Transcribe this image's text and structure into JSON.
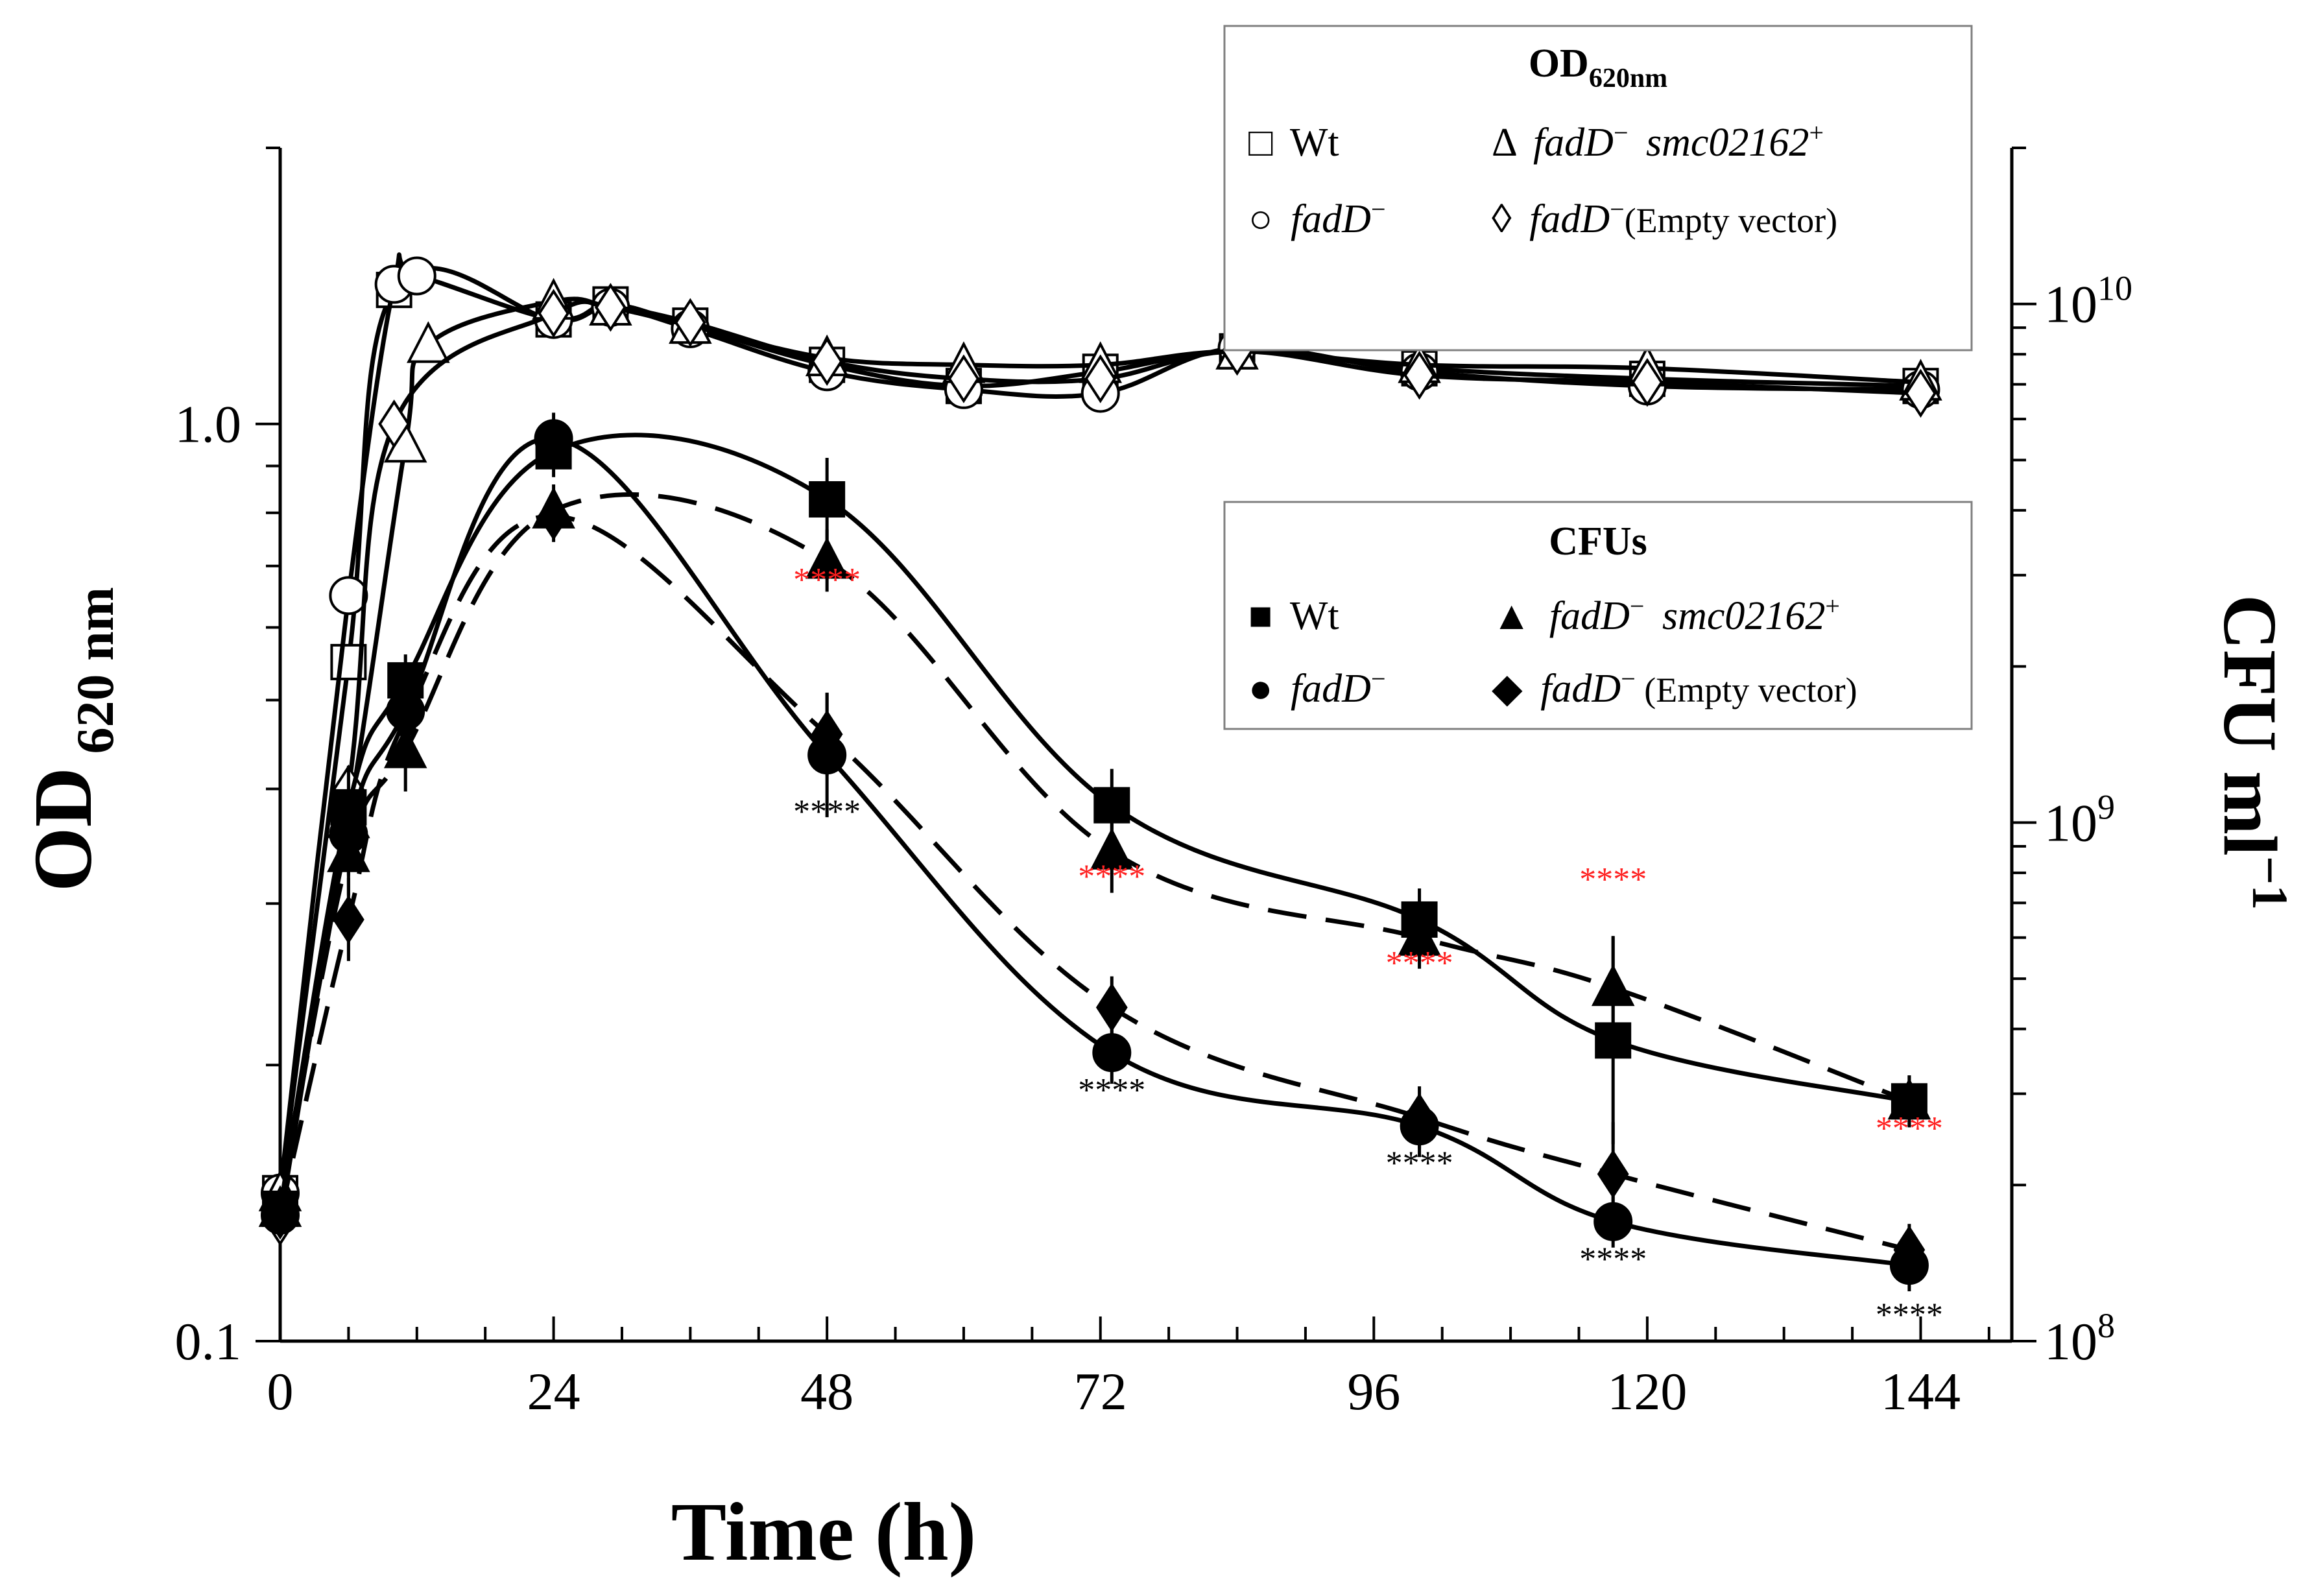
{
  "chart_data": {
    "type": "line",
    "xlabel": "Time (h)",
    "ylabel_left": {
      "main": "OD",
      "sub": " 620 nm"
    },
    "ylabel_right": {
      "main": "CFU ml",
      "sup": "−1"
    },
    "x_ticks": [
      "0",
      "24",
      "48",
      "72",
      "96",
      "120",
      "144"
    ],
    "x_tick_values": [
      0,
      24,
      48,
      72,
      96,
      120,
      144
    ],
    "x_range": [
      0,
      152
    ],
    "y_left": {
      "scale": "log",
      "range": [
        0.1,
        2.0
      ],
      "tick_labels": [
        "0.1",
        "1.0"
      ],
      "tick_values": [
        0.1,
        1.0
      ]
    },
    "y_right": {
      "scale": "log",
      "range": [
        100000000,
        20000000000
      ],
      "tick_labels": [
        {
          "base": "10",
          "exp": "8"
        },
        {
          "base": "10",
          "exp": "9"
        },
        {
          "base": "10",
          "exp": "10"
        }
      ],
      "tick_values": [
        100000000,
        1000000000,
        10000000000
      ]
    },
    "legend_od": {
      "title_main": "OD",
      "title_sub": "620nm",
      "entries": [
        {
          "symbol": "□",
          "label": "Wt",
          "italic": false
        },
        {
          "symbol": "Δ",
          "label": "fadD",
          "sup": "−",
          "label2": "smc02162",
          "sup2": "+"
        },
        {
          "symbol": "○",
          "label": "fadD",
          "sup": "−"
        },
        {
          "symbol": "◊",
          "label": "fadD",
          "sup": "−",
          "label2": "(Empty vector)"
        }
      ]
    },
    "legend_cfu": {
      "title": "CFUs",
      "entries": [
        {
          "symbol": "■",
          "label": "Wt"
        },
        {
          "symbol": "▲",
          "label": "fadD",
          "sup": "−",
          "label2": "smc02162",
          "sup2": "+"
        },
        {
          "symbol": "●",
          "label": "fadD",
          "sup": "−"
        },
        {
          "symbol": "◆",
          "label": "fadD",
          "sup": "−",
          "label2": " (Empty vector)"
        }
      ]
    },
    "series_od": [
      {
        "name": "Wt (OD)",
        "marker": "square",
        "x": [
          0,
          6,
          10,
          24,
          29,
          36,
          48,
          60,
          72,
          84,
          100,
          120,
          144
        ],
        "y": [
          0.145,
          0.55,
          1.4,
          1.3,
          1.35,
          1.28,
          1.16,
          1.1,
          1.14,
          1.2,
          1.15,
          1.12,
          1.1
        ]
      },
      {
        "name": "fadD- (OD)",
        "marker": "circle",
        "x": [
          0,
          6,
          10,
          12,
          24,
          29,
          36,
          48,
          60,
          72,
          84,
          100,
          120,
          144
        ],
        "y": [
          0.145,
          0.65,
          1.42,
          1.45,
          1.3,
          1.34,
          1.27,
          1.14,
          1.09,
          1.08,
          1.21,
          1.14,
          1.1,
          1.09
        ]
      },
      {
        "name": "fadD- smc02162+ (OD)",
        "marker": "triangle",
        "x": [
          0,
          6,
          11,
          13,
          24,
          29,
          36,
          48,
          60,
          72,
          84,
          100,
          120,
          144
        ],
        "y": [
          0.145,
          0.37,
          0.95,
          1.22,
          1.36,
          1.34,
          1.28,
          1.18,
          1.16,
          1.16,
          1.2,
          1.16,
          1.15,
          1.11
        ]
      },
      {
        "name": "fadD- Empty vector (OD)",
        "marker": "diamond",
        "x": [
          0,
          6,
          10,
          24,
          29,
          36,
          48,
          60,
          72,
          84,
          100,
          120,
          144
        ],
        "y": [
          0.135,
          0.4,
          1.0,
          1.32,
          1.34,
          1.29,
          1.17,
          1.12,
          1.12,
          1.2,
          1.13,
          1.11,
          1.08
        ]
      }
    ],
    "series_cfu": [
      {
        "name": "Wt (CFU)",
        "marker": "square",
        "dash": false,
        "x": [
          0,
          6,
          11,
          24,
          48,
          73,
          100,
          117,
          143
        ],
        "y": [
          180000000,
          1070000000,
          1880000000,
          5200000000,
          4200000000,
          1080000000,
          650000000,
          380000000,
          290000000
        ],
        "err": [
          0,
          0.08,
          0.05,
          0.05,
          0.08,
          0.07,
          0.06,
          0.2,
          0.05
        ]
      },
      {
        "name": "fadD- smc02162+ (CFU)",
        "marker": "triangle",
        "dash": true,
        "x": [
          0,
          6,
          11,
          24,
          48,
          73,
          100,
          117,
          143
        ],
        "y": [
          180000000,
          870000000,
          1380000000,
          4000000000,
          3200000000,
          880000000,
          600000000,
          480000000,
          290000000
        ],
        "err": [
          0,
          0.08,
          0.08,
          0.05,
          0.06,
          0.08,
          0.06,
          0.1,
          0.05
        ]
      },
      {
        "name": "fadD- (CFU)",
        "marker": "circle",
        "dash": false,
        "x": [
          0,
          6,
          11,
          24,
          48,
          73,
          100,
          117,
          143
        ],
        "y": [
          175000000,
          950000000,
          1640000000,
          5500000000,
          1350000000,
          360000000,
          260000000,
          170000000,
          140000000
        ],
        "err": [
          0,
          0.08,
          0.07,
          0.05,
          0.12,
          0.06,
          0.06,
          0.05,
          0.05
        ]
      },
      {
        "name": "fadD- Empty vector (CFU)",
        "marker": "diamond",
        "dash": true,
        "x": [
          0,
          6,
          11,
          24,
          48,
          73,
          100,
          117,
          143
        ],
        "y": [
          175000000,
          650000000,
          1580000000,
          3900000000,
          1480000000,
          440000000,
          270000000,
          210000000,
          150000000
        ],
        "err": [
          0,
          0.08,
          0.06,
          0.05,
          0.08,
          0.06,
          0.06,
          0.1,
          0.05
        ]
      }
    ],
    "annotations": [
      {
        "text": "****",
        "x": 48,
        "y": 2800000000,
        "color": "#ff2020"
      },
      {
        "text": "****",
        "x": 48,
        "y": 1000000000,
        "color": "#000000"
      },
      {
        "text": "****",
        "x": 73,
        "y": 750000000,
        "color": "#ff2020"
      },
      {
        "text": "****",
        "x": 73,
        "y": 290000000,
        "color": "#000000"
      },
      {
        "text": "****",
        "x": 100,
        "y": 510000000,
        "color": "#ff2020"
      },
      {
        "text": "****",
        "x": 100,
        "y": 210000000,
        "color": "#000000"
      },
      {
        "text": "****",
        "x": 117,
        "y": 740000000,
        "color": "#ff2020"
      },
      {
        "text": "****",
        "x": 117,
        "y": 137000000,
        "color": "#000000"
      },
      {
        "text": "****",
        "x": 143,
        "y": 245000000,
        "color": "#ff2020"
      },
      {
        "text": "****",
        "x": 143,
        "y": 107000000,
        "color": "#000000"
      }
    ]
  }
}
